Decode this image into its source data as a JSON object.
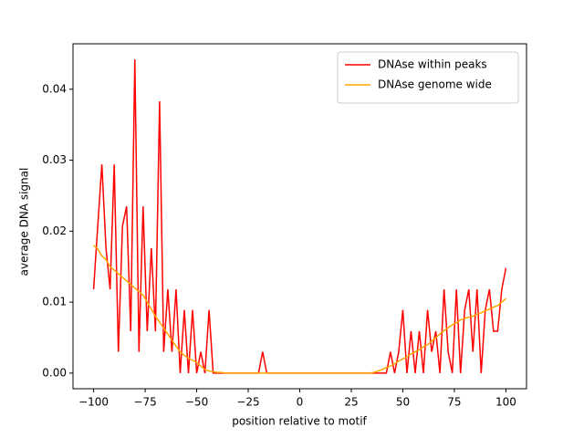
{
  "chart_data": {
    "type": "line",
    "xlabel": "position relative to motif",
    "ylabel": "average DNA signal",
    "xlim": [
      -110,
      110
    ],
    "ylim": [
      -0.0022,
      0.0464
    ],
    "xticks": [
      {
        "value": -100,
        "label": "−100"
      },
      {
        "value": -75,
        "label": "−75"
      },
      {
        "value": -50,
        "label": "−50"
      },
      {
        "value": -25,
        "label": "−25"
      },
      0,
      25,
      50,
      75,
      100
    ],
    "yticks": [
      {
        "value": 0,
        "label": "0.00"
      },
      {
        "value": 0.01,
        "label": "0.01"
      },
      {
        "value": 0.02,
        "label": "0.02"
      },
      {
        "value": 0.03,
        "label": "0.03"
      },
      {
        "value": 0.04,
        "label": "0.04"
      }
    ],
    "legend": "upper right",
    "x": [
      -100,
      -98,
      -96,
      -94,
      -92,
      -90,
      -88,
      -86,
      -84,
      -82,
      -80,
      -78,
      -76,
      -74,
      -72,
      -70,
      -68,
      -66,
      -64,
      -62,
      -60,
      -58,
      -56,
      -54,
      -52,
      -50,
      -48,
      -46,
      -44,
      -42,
      -40,
      -38,
      -36,
      -34,
      -32,
      -30,
      -28,
      -26,
      -24,
      -22,
      -20,
      -18,
      -16,
      -14,
      -12,
      -10,
      -8,
      -6,
      -4,
      -2,
      0,
      2,
      4,
      6,
      8,
      10,
      12,
      14,
      16,
      18,
      20,
      22,
      24,
      26,
      28,
      30,
      32,
      34,
      36,
      38,
      40,
      42,
      44,
      46,
      48,
      50,
      52,
      54,
      56,
      58,
      60,
      62,
      64,
      66,
      68,
      70,
      72,
      74,
      76,
      78,
      80,
      82,
      84,
      86,
      88,
      90,
      92,
      94,
      96,
      98,
      100
    ],
    "series": [
      {
        "name": "DNAse within peaks",
        "color": "#ff0000",
        "values": [
          0.0118,
          0.0207,
          0.0294,
          0.0176,
          0.0118,
          0.0294,
          0.003,
          0.0207,
          0.0235,
          0.0059,
          0.0442,
          0.003,
          0.0235,
          0.0059,
          0.0176,
          0.0059,
          0.0383,
          0.003,
          0.0118,
          0.003,
          0.0118,
          0,
          0.0089,
          0,
          0.0089,
          0,
          0.003,
          0,
          0.0089,
          0,
          0,
          0,
          0,
          0,
          0,
          0,
          0,
          0,
          0,
          0,
          0,
          0.003,
          0,
          0,
          0,
          0,
          0,
          0,
          0,
          0,
          0,
          0,
          0,
          0,
          0,
          0,
          0,
          0,
          0,
          0,
          0,
          0,
          0,
          0,
          0,
          0,
          0,
          0,
          0,
          0,
          0,
          0,
          0.003,
          0,
          0.003,
          0.0089,
          0,
          0.0059,
          0,
          0.0059,
          0,
          0.0089,
          0.003,
          0.0059,
          0,
          0.0118,
          0.003,
          0,
          0.0118,
          0,
          0.0089,
          0.0118,
          0.003,
          0.0118,
          0,
          0.0089,
          0.0118,
          0.0059,
          0.0059,
          0.0118,
          0.0148
        ]
      },
      {
        "name": "DNAse genome wide",
        "color": "#ffa500",
        "values": [
          0.018,
          0.0175,
          0.0165,
          0.016,
          0.015,
          0.0145,
          0.014,
          0.0135,
          0.013,
          0.0125,
          0.012,
          0.0115,
          0.011,
          0.01,
          0.009,
          0.008,
          0.0072,
          0.0063,
          0.0055,
          0.0046,
          0.0038,
          0.003,
          0.0025,
          0.0021,
          0.0018,
          0.0015,
          0.001,
          0.0005,
          0.0003,
          0.0002,
          0.0001,
          0.0001,
          0,
          0,
          0,
          0,
          0,
          0,
          0,
          0,
          0,
          0,
          0,
          0,
          0,
          0,
          0,
          0,
          0,
          0,
          0,
          0,
          0,
          0,
          0,
          0,
          0,
          0,
          0,
          0,
          0,
          0,
          0,
          0,
          0,
          0,
          0,
          0,
          0.0001,
          0.0003,
          0.0005,
          0.0008,
          0.001,
          0.0013,
          0.0017,
          0.002,
          0.0023,
          0.0027,
          0.003,
          0.0033,
          0.0037,
          0.004,
          0.0045,
          0.005,
          0.0055,
          0.006,
          0.0064,
          0.0068,
          0.0071,
          0.0075,
          0.0077,
          0.0079,
          0.008,
          0.0083,
          0.0085,
          0.0088,
          0.009,
          0.0093,
          0.0095,
          0.01,
          0.0105
        ]
      }
    ]
  }
}
